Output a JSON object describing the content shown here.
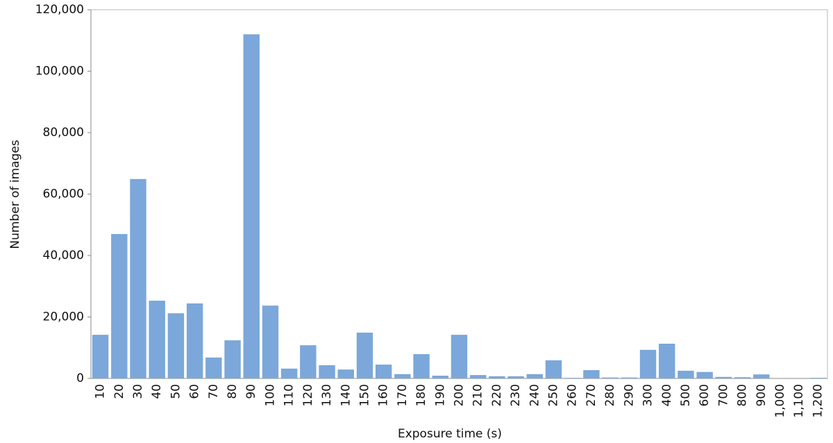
{
  "chart_data": {
    "type": "bar",
    "x_label": "Exposure time (s)",
    "y_label": "Number of images",
    "categories": [
      "10",
      "20",
      "30",
      "40",
      "50",
      "60",
      "70",
      "80",
      "90",
      "100",
      "110",
      "120",
      "130",
      "140",
      "150",
      "160",
      "170",
      "180",
      "190",
      "200",
      "210",
      "220",
      "230",
      "240",
      "250",
      "260",
      "270",
      "280",
      "290",
      "300",
      "400",
      "500",
      "600",
      "700",
      "800",
      "900",
      "1,000",
      "1,100",
      "1,200"
    ],
    "values": [
      14200,
      47000,
      64900,
      25300,
      21200,
      24400,
      6800,
      12400,
      112000,
      23700,
      3200,
      10800,
      4300,
      2900,
      14900,
      4500,
      1400,
      7900,
      900,
      14200,
      1100,
      700,
      700,
      1400,
      5900,
      200,
      2700,
      300,
      300,
      9300,
      11300,
      2500,
      2100,
      500,
      400,
      1300,
      0,
      0,
      200
    ],
    "color": "#7ba7da",
    "ylim": [
      0,
      120000
    ],
    "yticks": [
      0,
      {
        "value": 20000,
        "label": "20,000"
      },
      {
        "value": 40000,
        "label": "40,000"
      },
      {
        "value": 60000,
        "label": "60,000"
      },
      {
        "value": 80000,
        "label": "80,000"
      },
      {
        "value": 100000,
        "label": "100,000"
      },
      {
        "value": 120000,
        "label": "120,000"
      }
    ],
    "grid": false
  }
}
